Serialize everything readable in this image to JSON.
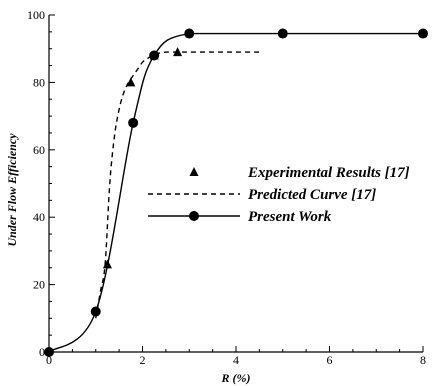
{
  "chart_data": {
    "type": "line",
    "title": "",
    "xlabel": "R (%)",
    "ylabel": "Under Flow Efficiency",
    "xlim": [
      0,
      8
    ],
    "ylim": [
      0,
      100
    ],
    "xticks": [
      0,
      2,
      4,
      6,
      8
    ],
    "yticks": [
      0,
      20,
      40,
      60,
      80,
      100
    ],
    "x_tick_labels": [
      "0",
      "2",
      "4",
      "6",
      "8"
    ],
    "y_tick_labels": [
      "0",
      "20",
      "40",
      "60",
      "80",
      "100"
    ],
    "grid": false,
    "legend_position": "center-right",
    "series": [
      {
        "name": "Experimental Results [17]",
        "style": "markers",
        "marker": "triangle",
        "x": [
          1.25,
          1.75,
          2.25,
          2.75
        ],
        "y": [
          26,
          80,
          88,
          89
        ]
      },
      {
        "name": "Predicted Curve [17]",
        "style": "dashed",
        "x": [
          1.0,
          1.1,
          1.2,
          1.3,
          1.4,
          1.5,
          1.6,
          1.7,
          1.8,
          1.9,
          2.0,
          2.1,
          2.2,
          2.3,
          2.5,
          2.75,
          3.0,
          3.5,
          4.0,
          4.5
        ],
        "y": [
          10,
          18,
          26,
          50,
          64,
          72,
          77,
          80,
          82,
          84,
          86,
          87,
          88,
          88.5,
          89,
          89,
          89,
          89,
          89,
          89
        ]
      },
      {
        "name": "Present Work",
        "style": "solid-markers",
        "marker": "circle",
        "x": [
          0,
          1.0,
          1.8,
          2.25,
          3.0,
          5.0,
          8.0
        ],
        "y": [
          0,
          12,
          68,
          88,
          94.5,
          94.5,
          94.5
        ]
      }
    ]
  },
  "colors": {
    "line": "#000000",
    "background": "#ffffff"
  }
}
